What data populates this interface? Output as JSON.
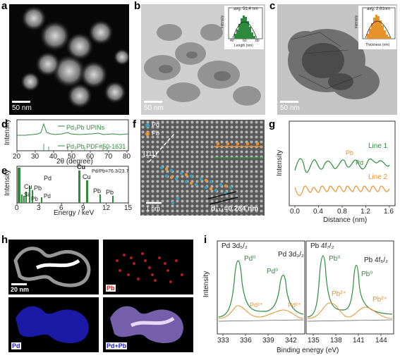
{
  "panels": {
    "a": {
      "label": "a",
      "scale": "50 nm"
    },
    "b": {
      "label": "b",
      "scale": "50 nm",
      "inset_text": "avg. 51.4 nm",
      "inset_ylabel": "Intensity",
      "inset_xlabel": "Length (nm)",
      "inset_ticks": [
        "40",
        "60",
        "80"
      ]
    },
    "c": {
      "label": "c",
      "scale": "50 nm",
      "inset_text": "avg. 2.61nm",
      "inset_ylabel": "Intensity",
      "inset_xlabel": "Thickness (nm)"
    },
    "d": {
      "label": "d",
      "ylabel": "Intensity",
      "xlabel": "2θ (degree)",
      "legend1": "Pd₃Pb UPINs",
      "legend2": "Pd₃Pb PDF#50-1631",
      "ticks": [
        "20",
        "30",
        "40",
        "50",
        "60",
        "70",
        "80"
      ]
    },
    "e": {
      "label": "e",
      "ylabel": "Intensity",
      "xlabel": "Energy / keV",
      "ratio": "Pd/Pb=76.3/23.7",
      "ticks": [
        "0",
        "3",
        "6",
        "9",
        "12",
        "15"
      ],
      "peaks": [
        "Pd",
        "Cu",
        "Si",
        "Pb",
        "Pb",
        "Pd",
        "Cu",
        "Cu",
        "Pb",
        "Pb"
      ]
    },
    "f": {
      "label": "f",
      "legend_pd": "Pd",
      "legend_pb": "Pb",
      "plane": "{111}",
      "scale": "1 nm",
      "dspacing": "d₁₁₁=0.284 nm"
    },
    "g": {
      "label": "g",
      "ylabel": "Intensity",
      "xlabel": "Distance (nm)",
      "line1": "Line 1",
      "line2": "Line 2",
      "pb": "Pb",
      "pd": "Pd",
      "ticks": [
        "0.0",
        "0.4",
        "0.8",
        "1.2",
        "1.6"
      ]
    },
    "h": {
      "label": "h",
      "scale": "20 nm",
      "pb": "Pb",
      "pd": "Pd",
      "pdpb": "Pd+Pb"
    },
    "i": {
      "label": "i",
      "ylabel": "Intensity",
      "xlabel": "Binding energy (eV)",
      "left_title1": "Pd 3d₅/₂",
      "left_title2": "Pd 3d₃/₂",
      "pd0": "Pd⁰",
      "pd2": "Pd²⁺",
      "right_title1": "Pb 4f₇/₂",
      "right_title2": "Pb 4f₅/₂",
      "pb0": "Pb⁰",
      "pb2": "Pb²⁺",
      "left_ticks": [
        "333",
        "336",
        "339",
        "342"
      ],
      "right_ticks": [
        "135",
        "138",
        "141",
        "144"
      ]
    }
  },
  "colors": {
    "green": "#2e8b3e",
    "orange": "#e8922a",
    "teal": "#3aa0b5",
    "pdblue": "#2020d0",
    "pbred": "#d02020"
  }
}
